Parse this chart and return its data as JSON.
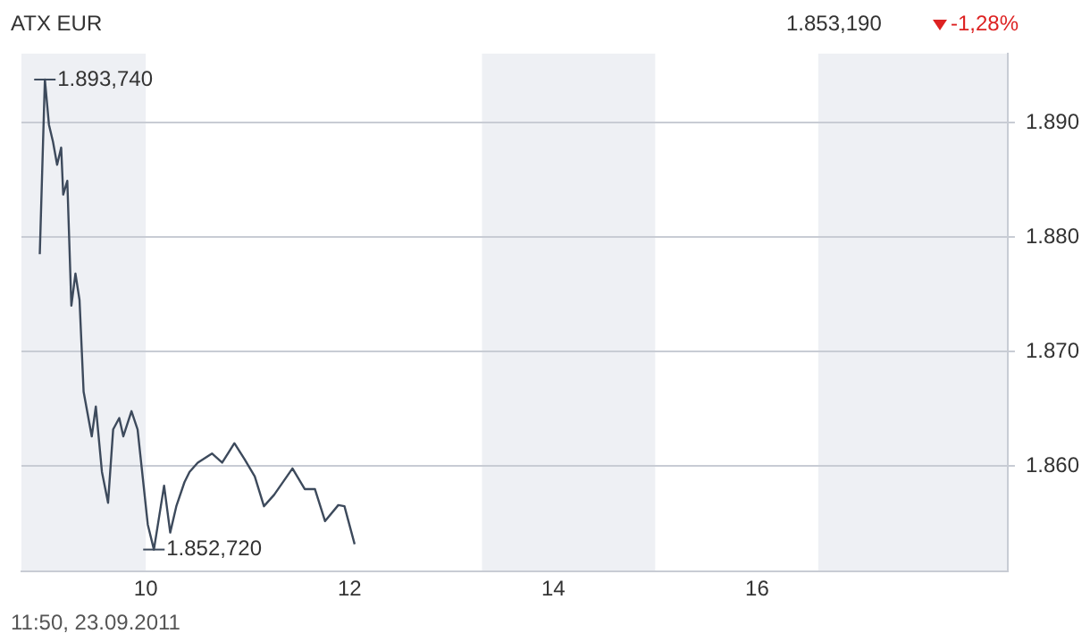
{
  "chart_data": {
    "type": "line",
    "title": "ATX EUR",
    "subtitle": "1.853,190",
    "x": [
      8.96,
      9.01,
      9.05,
      9.09,
      9.13,
      9.17,
      9.19,
      9.23,
      9.27,
      9.31,
      9.35,
      9.39,
      9.47,
      9.51,
      9.57,
      9.63,
      9.68,
      9.74,
      9.78,
      9.86,
      9.92,
      10.02,
      10.08,
      10.18,
      10.24,
      10.3,
      10.38,
      10.43,
      10.51,
      10.65,
      10.75,
      10.87,
      10.97,
      11.07,
      11.16,
      11.26,
      11.44,
      11.56,
      11.66,
      11.76,
      11.89,
      11.95,
      12.05
    ],
    "series": [
      {
        "color": "#3d4a5c",
        "values": [
          1878.5,
          1893.74,
          1889.8,
          1888.3,
          1886.3,
          1887.8,
          1883.7,
          1884.9,
          1874,
          1876.8,
          1874.5,
          1866.5,
          1862.6,
          1865.2,
          1859.5,
          1856.8,
          1863.2,
          1864.2,
          1862.6,
          1864.8,
          1863.2,
          1854.9,
          1852.72,
          1858.3,
          1854.2,
          1856.5,
          1858.6,
          1859.5,
          1860.3,
          1861.1,
          1860.3,
          1862,
          1860.6,
          1859.1,
          1856.5,
          1857.5,
          1859.8,
          1858,
          1858,
          1855.2,
          1856.6,
          1856.5,
          1853.19
        ]
      }
    ],
    "xlim": [
      8.78,
      18.46
    ],
    "xticks": [
      10,
      12,
      14,
      16
    ],
    "ylim": [
      1850.8,
      1896
    ],
    "yticks": [
      {
        "value": 1860,
        "label": "1.860"
      },
      {
        "value": 1870,
        "label": "1.870"
      },
      {
        "value": 1880,
        "label": "1.880"
      },
      {
        "value": 1890,
        "label": "1.890"
      }
    ],
    "grid": "y",
    "legend": false,
    "marker": "none",
    "line_style": "solid",
    "bands": [
      {
        "axis": "x",
        "from": 8.78,
        "to": 10,
        "color": "#eef0f4"
      },
      {
        "axis": "x",
        "from": 13.3,
        "to": 15,
        "color": "#eef0f4"
      },
      {
        "axis": "x",
        "from": 16.6,
        "to": 18.46,
        "color": "#eef0f4"
      }
    ],
    "annotations": [
      {
        "text": "1.893,740",
        "x": 9.01,
        "y": 1893.74
      },
      {
        "text": "1.852,720",
        "x": 10.08,
        "y": 1852.72
      },
      "-1,28%",
      "11:50, 23.09.2011"
    ]
  }
}
